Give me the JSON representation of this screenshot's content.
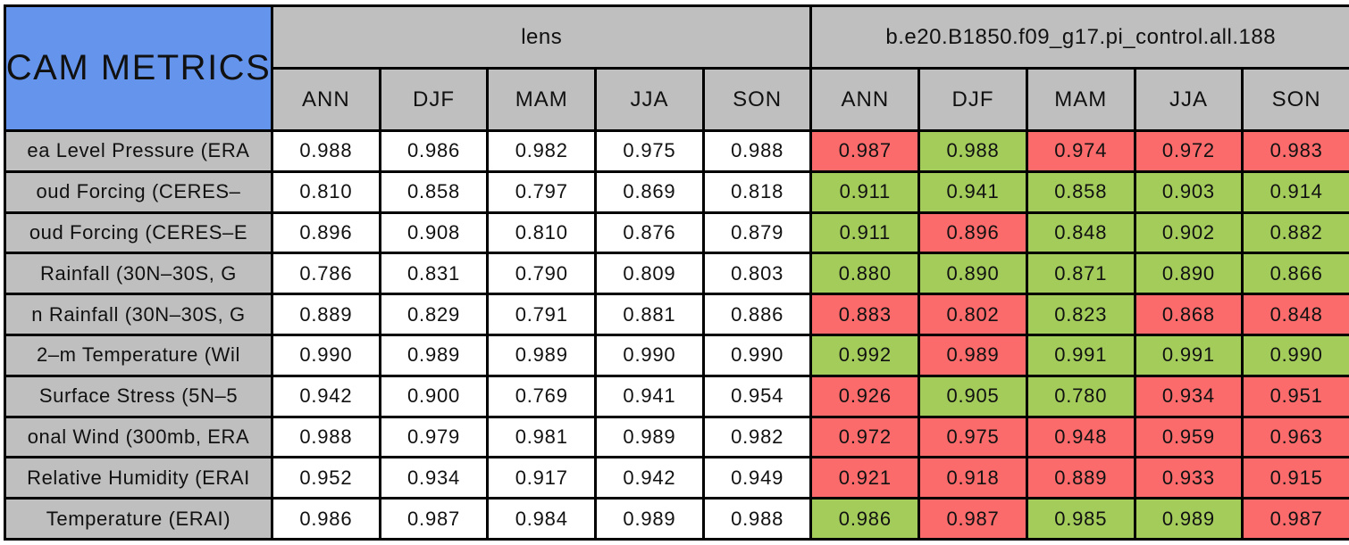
{
  "colors": {
    "title_bg": "#6494ec",
    "header_bg": "#bfbfbf",
    "lens_cell_bg": "#ffffff",
    "better_green": "#a3cc5b",
    "worse_red": "#fb6b6b",
    "border": "#000000"
  },
  "chart_data": {
    "type": "table",
    "title": "CAM METRICS",
    "column_groups": [
      {
        "name": "lens",
        "seasons": [
          "ANN",
          "DJF",
          "MAM",
          "JJA",
          "SON"
        ]
      },
      {
        "name": "b.e20.B1850.f09_g17.pi_control.all.188",
        "seasons": [
          "ANN",
          "DJF",
          "MAM",
          "JJA",
          "SON"
        ]
      }
    ],
    "value_format": "0.000",
    "cell_color_meaning": {
      "green": "better_green",
      "red": "worse_red"
    },
    "rows": [
      {
        "label": "ea Level Pressure (ERA",
        "lens": [
          0.988,
          0.986,
          0.982,
          0.975,
          0.988
        ],
        "control": [
          0.987,
          0.988,
          0.974,
          0.972,
          0.983
        ],
        "control_colors": [
          "red",
          "green",
          "red",
          "red",
          "red"
        ]
      },
      {
        "label": "oud Forcing (CERES–",
        "lens": [
          0.81,
          0.858,
          0.797,
          0.869,
          0.818
        ],
        "control": [
          0.911,
          0.941,
          0.858,
          0.903,
          0.914
        ],
        "control_colors": [
          "green",
          "green",
          "green",
          "green",
          "green"
        ]
      },
      {
        "label": "oud Forcing (CERES–E",
        "lens": [
          0.896,
          0.908,
          0.81,
          0.876,
          0.879
        ],
        "control": [
          0.911,
          0.896,
          0.848,
          0.902,
          0.882
        ],
        "control_colors": [
          "green",
          "red",
          "green",
          "green",
          "green"
        ]
      },
      {
        "label": "Rainfall (30N–30S, G",
        "lens": [
          0.786,
          0.831,
          0.79,
          0.809,
          0.803
        ],
        "control": [
          0.88,
          0.89,
          0.871,
          0.89,
          0.866
        ],
        "control_colors": [
          "green",
          "green",
          "green",
          "green",
          "green"
        ]
      },
      {
        "label": "n Rainfall (30N–30S, G",
        "lens": [
          0.889,
          0.829,
          0.791,
          0.881,
          0.886
        ],
        "control": [
          0.883,
          0.802,
          0.823,
          0.868,
          0.848
        ],
        "control_colors": [
          "red",
          "red",
          "green",
          "red",
          "red"
        ]
      },
      {
        "label": "2–m Temperature (Wil",
        "lens": [
          0.99,
          0.989,
          0.989,
          0.99,
          0.99
        ],
        "control": [
          0.992,
          0.989,
          0.991,
          0.991,
          0.99
        ],
        "control_colors": [
          "green",
          "red",
          "green",
          "green",
          "green"
        ]
      },
      {
        "label": "Surface Stress (5N–5",
        "lens": [
          0.942,
          0.9,
          0.769,
          0.941,
          0.954
        ],
        "control": [
          0.926,
          0.905,
          0.78,
          0.934,
          0.951
        ],
        "control_colors": [
          "red",
          "green",
          "green",
          "red",
          "red"
        ]
      },
      {
        "label": "onal Wind (300mb, ERA",
        "lens": [
          0.988,
          0.979,
          0.981,
          0.989,
          0.982
        ],
        "control": [
          0.972,
          0.975,
          0.948,
          0.959,
          0.963
        ],
        "control_colors": [
          "red",
          "red",
          "red",
          "red",
          "red"
        ]
      },
      {
        "label": "Relative Humidity (ERAI",
        "lens": [
          0.952,
          0.934,
          0.917,
          0.942,
          0.949
        ],
        "control": [
          0.921,
          0.918,
          0.889,
          0.933,
          0.915
        ],
        "control_colors": [
          "red",
          "red",
          "red",
          "red",
          "red"
        ]
      },
      {
        "label": "Temperature (ERAI)",
        "lens": [
          0.986,
          0.987,
          0.984,
          0.989,
          0.988
        ],
        "control": [
          0.986,
          0.987,
          0.985,
          0.989,
          0.987
        ],
        "control_colors": [
          "green",
          "red",
          "green",
          "green",
          "red"
        ]
      }
    ]
  }
}
